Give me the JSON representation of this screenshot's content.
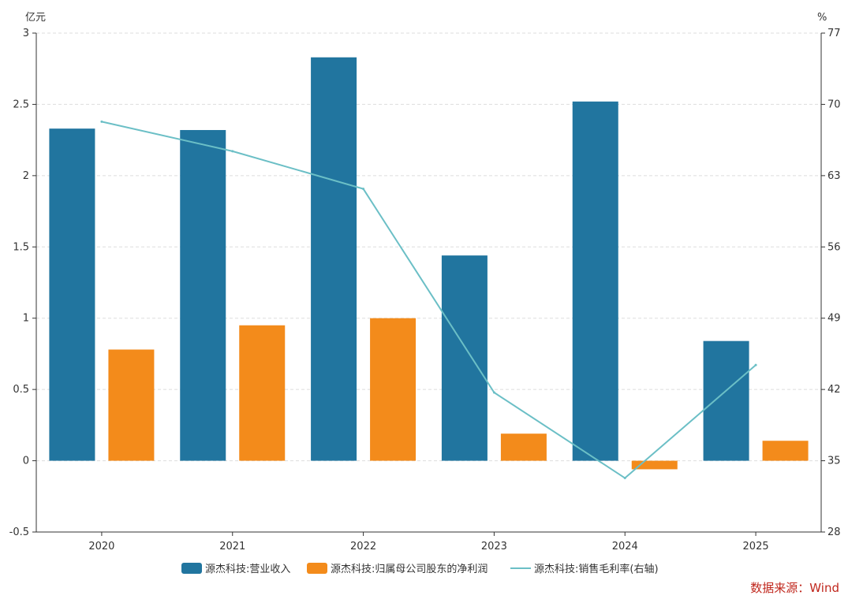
{
  "chart_data": {
    "type": "bar+line",
    "categories": [
      "2020",
      "2021",
      "2022",
      "2023",
      "2024",
      "2025"
    ],
    "series": [
      {
        "name": "源杰科技:营业收入",
        "type": "bar",
        "axis": "left",
        "color": "#21759f",
        "values": [
          2.33,
          2.32,
          2.83,
          1.44,
          2.52,
          0.84
        ]
      },
      {
        "name": "源杰科技:归属母公司股东的净利润",
        "type": "bar",
        "axis": "left",
        "color": "#f38b1b",
        "values": [
          0.78,
          0.95,
          1.0,
          0.19,
          -0.06,
          0.14
        ]
      },
      {
        "name": "源杰科技:销售毛利率(右轴)",
        "type": "line",
        "axis": "right",
        "color": "#6bbfc6",
        "values": [
          68.3,
          65.4,
          61.7,
          41.7,
          33.3,
          44.4
        ]
      }
    ],
    "left_axis": {
      "unit": "亿元",
      "min": -0.5,
      "max": 3,
      "ticks": [
        "-0.5",
        "0",
        "0.5",
        "1",
        "1.5",
        "2",
        "2.5",
        "3"
      ]
    },
    "right_axis": {
      "unit": "%",
      "min": 28,
      "max": 77,
      "ticks": [
        "28",
        "35",
        "42",
        "49",
        "56",
        "63",
        "70",
        "77"
      ]
    },
    "grid": true,
    "legend_position": "bottom",
    "source_text": "数据来源：Wind",
    "source_color": "#c0271d"
  }
}
